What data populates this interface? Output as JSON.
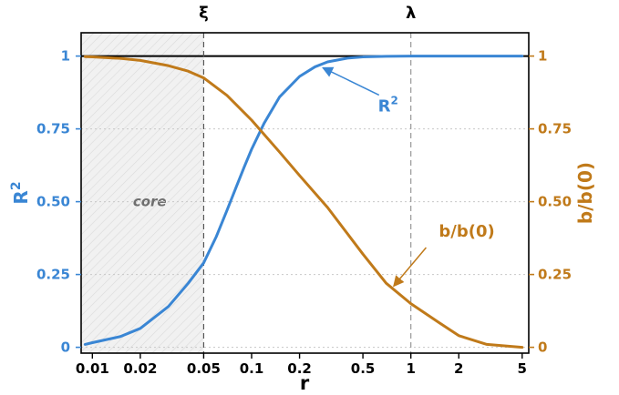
{
  "chart_data": {
    "type": "line",
    "xlabel": "r",
    "x_scale": "log",
    "xlim": [
      0.0085,
      5.5
    ],
    "x_ticks": [
      0.01,
      0.02,
      0.05,
      0.1,
      0.2,
      0.5,
      1,
      2,
      5
    ],
    "x_tick_labels": [
      "0.01",
      "0.02",
      "0.05",
      "0.1",
      "0.2",
      "0.5",
      "1",
      "2",
      "5"
    ],
    "ylim": [
      -0.02,
      1.08
    ],
    "y_left": {
      "label": "R",
      "label_superscript": "2",
      "color": "#3a86d4",
      "ticks": [
        0,
        0.25,
        0.5,
        0.75,
        1
      ],
      "tick_labels": [
        "0",
        "0.25",
        "0.50",
        "0.75",
        "1"
      ]
    },
    "y_right": {
      "label": "b/b(0)",
      "color": "#c07a1a",
      "ticks": [
        0,
        0.25,
        0.5,
        0.75,
        1
      ],
      "tick_labels": [
        "0",
        "0.25",
        "0.50",
        "0.75",
        "1"
      ]
    },
    "top_markers": [
      {
        "label": "ξ",
        "x": 0.05
      },
      {
        "label": "λ",
        "x": 1
      }
    ],
    "shaded_region": {
      "x_from": 0.0085,
      "x_to": 0.05,
      "label": "core"
    },
    "reference_line": {
      "y": 1
    },
    "grid": "horizontal dotted",
    "series": [
      {
        "name": "R²",
        "axis": "left",
        "color": "#3a86d4",
        "x": [
          0.009,
          0.01,
          0.015,
          0.02,
          0.03,
          0.04,
          0.05,
          0.06,
          0.07,
          0.08,
          0.09,
          0.1,
          0.12,
          0.15,
          0.2,
          0.25,
          0.3,
          0.4,
          0.5,
          0.7,
          1,
          1.5,
          2,
          3,
          5
        ],
        "y": [
          0.01,
          0.016,
          0.037,
          0.065,
          0.14,
          0.22,
          0.29,
          0.38,
          0.47,
          0.55,
          0.62,
          0.68,
          0.77,
          0.86,
          0.93,
          0.963,
          0.98,
          0.993,
          0.997,
          0.999,
          1.0,
          1.0,
          1.0,
          1.0,
          1.0
        ]
      },
      {
        "name": "b/b(0)",
        "axis": "right",
        "color": "#c07a1a",
        "x": [
          0.009,
          0.01,
          0.015,
          0.02,
          0.03,
          0.04,
          0.05,
          0.07,
          0.1,
          0.15,
          0.2,
          0.3,
          0.5,
          0.7,
          1,
          1.5,
          2,
          3,
          5
        ],
        "y": [
          0.998,
          0.997,
          0.992,
          0.985,
          0.967,
          0.948,
          0.925,
          0.865,
          0.78,
          0.67,
          0.59,
          0.48,
          0.32,
          0.22,
          0.15,
          0.085,
          0.04,
          0.01,
          0.0
        ]
      }
    ],
    "annotations": [
      {
        "text": "R",
        "superscript": "2",
        "color": "#3a86d4",
        "text_at": [
          0.72,
          0.81
        ],
        "arrow_to": [
          0.28,
          0.96
        ]
      },
      {
        "text": "b/b(0)",
        "color": "#c07a1a",
        "text_at": [
          1.5,
          0.38
        ],
        "arrow_to": [
          0.78,
          0.21
        ]
      }
    ]
  }
}
